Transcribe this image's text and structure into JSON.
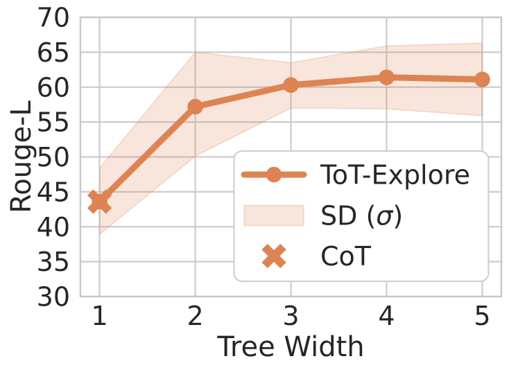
{
  "figure": {
    "background": "#ffffff",
    "text_color": "#262626",
    "grid_color": "#cccccc",
    "spine_color": "#c9c9c9",
    "accent_color": "#dd8452",
    "legend_bg": "#ffffff",
    "legend_border": "#cccccc"
  },
  "chart_data": {
    "type": "line",
    "title": "",
    "xlabel": "Tree Width",
    "ylabel": "Rouge-L",
    "x": [
      1,
      2,
      3,
      4,
      5
    ],
    "xlim": [
      0.8,
      5.2
    ],
    "ylim": [
      30,
      70
    ],
    "xticks": [
      "1",
      "2",
      "3",
      "4",
      "5"
    ],
    "xtick_values": [
      1,
      2,
      3,
      4,
      5
    ],
    "yticks": [
      "30",
      "35",
      "40",
      "45",
      "50",
      "55",
      "60",
      "65",
      "70"
    ],
    "ytick_values": [
      30,
      35,
      40,
      45,
      50,
      55,
      60,
      65,
      70
    ],
    "grid": true,
    "legend_position": "lower right",
    "series": [
      {
        "name": "ToT-Explore",
        "kind": "line",
        "color": "#dd8452",
        "marker": "circle",
        "values": [
          43.6,
          57.2,
          60.3,
          61.4,
          61.1
        ]
      },
      {
        "name": "SD (σ)",
        "kind": "band",
        "color": "#dd8452",
        "alpha": 0.2,
        "upper": [
          48.4,
          65.0,
          63.5,
          65.9,
          66.3
        ],
        "lower": [
          38.9,
          50.1,
          57.0,
          56.9,
          55.9
        ]
      },
      {
        "name": "CoT",
        "kind": "scatter",
        "marker": "X",
        "color": "#dd8452",
        "points": [
          {
            "x": 1,
            "y": 43.6
          }
        ]
      }
    ]
  }
}
